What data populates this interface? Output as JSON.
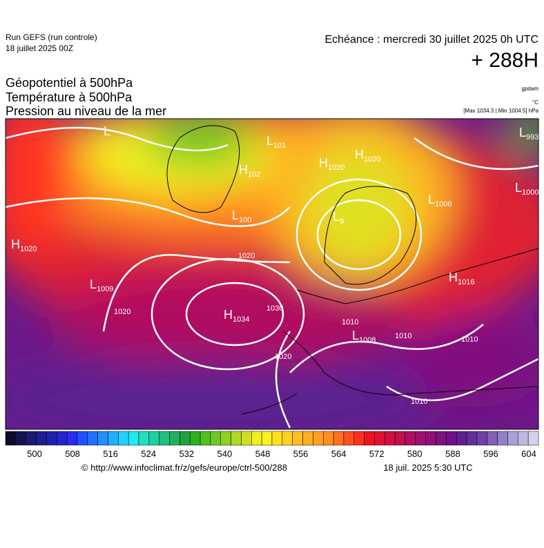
{
  "header": {
    "run": "Run GEFS (run controle)",
    "run_date": "18 juillet 2025 00Z",
    "valid": "Echéance : mercredi 30 juillet 2025 0h UTC",
    "lead": "+ 288H",
    "layers": [
      "Géopotentiel à 500hPa",
      "Température à 500hPa",
      "Pression au niveau de la mer"
    ],
    "units": [
      "gpdam",
      "°C"
    ],
    "extremes": "[Max 1034.3 | Min 1004.5] hPa"
  },
  "map": {
    "centers": [
      {
        "symbol": "L",
        "label": ""
      },
      {
        "symbol": "L",
        "label": "101"
      },
      {
        "symbol": "H",
        "label": "102"
      },
      {
        "symbol": "H",
        "label": "1020"
      },
      {
        "symbol": "H",
        "label": "1020"
      },
      {
        "symbol": "L",
        "label": "993"
      },
      {
        "symbol": "L",
        "label": "1000"
      },
      {
        "symbol": "L",
        "label": "1006"
      },
      {
        "symbol": "L",
        "label": "100"
      },
      {
        "symbol": "L",
        "label": "9"
      },
      {
        "symbol": "H",
        "label": "1020"
      },
      {
        "symbol": "L",
        "label": "1009"
      },
      {
        "symbol": "H",
        "label": "1034"
      },
      {
        "symbol": "H",
        "label": "1016"
      },
      {
        "symbol": "L",
        "label": "1008"
      }
    ],
    "isobar_labels": [
      "1020",
      "1030",
      "1020",
      "1020",
      "1010",
      "1010",
      "1010",
      "1010"
    ]
  },
  "colorbar": {
    "colors": [
      "#0b0b2e",
      "#141450",
      "#1a1a70",
      "#1e1e90",
      "#2020b0",
      "#2424d0",
      "#2a2af0",
      "#2050ff",
      "#2070ff",
      "#2090ff",
      "#20b0ff",
      "#20d0ff",
      "#20e8f0",
      "#20e0c0",
      "#20d0a0",
      "#20c080",
      "#20b060",
      "#20a040",
      "#30b020",
      "#50c020",
      "#70c820",
      "#90d020",
      "#b0d820",
      "#d0e020",
      "#f0f020",
      "#fff020",
      "#ffe020",
      "#ffd020",
      "#ffc020",
      "#ffb020",
      "#ffa020",
      "#ff9020",
      "#ff7020",
      "#ff5020",
      "#ff3020",
      "#f01020",
      "#e01030",
      "#d01040",
      "#c01050",
      "#b01060",
      "#a01070",
      "#901078",
      "#801080",
      "#701088",
      "#602090",
      "#603098",
      "#7040a8",
      "#8060b8",
      "#9080c8",
      "#a8a0d8",
      "#c0b8e0",
      "#d8d0ec"
    ],
    "ticks": [
      500,
      508,
      516,
      524,
      532,
      540,
      548,
      556,
      564,
      572,
      580,
      588,
      596,
      604
    ]
  },
  "footer": {
    "source": "© http://www.infoclimat.fr/z/gefs/europe/ctrl-500/288",
    "issued": "18 juil. 2025  5:30 UTC"
  }
}
